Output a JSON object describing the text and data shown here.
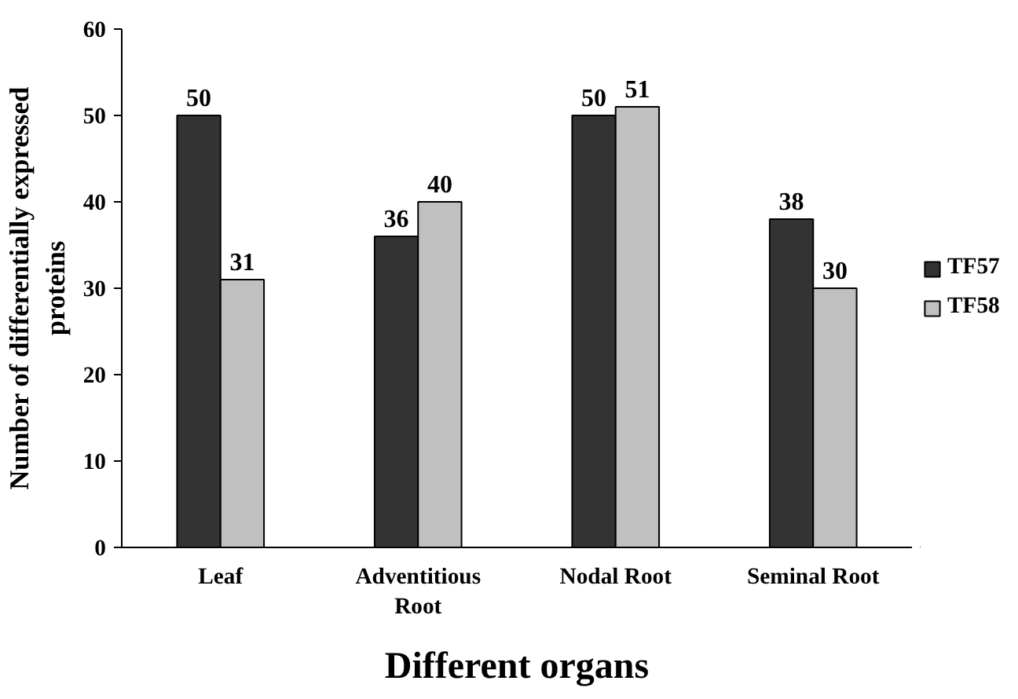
{
  "chart_data": {
    "type": "bar",
    "xlabel": "Different organs",
    "ylabel": "Number of differentially expressed proteins",
    "categories": [
      "Leaf",
      "Adventitious Root",
      "Nodal Root",
      "Seminal Root"
    ],
    "series": [
      {
        "name": "TF57",
        "color": "#333333",
        "values": [
          50,
          36,
          50,
          38
        ]
      },
      {
        "name": "TF58",
        "color": "#c0c0c0",
        "values": [
          31,
          40,
          51,
          30
        ]
      }
    ],
    "ylim": [
      0,
      60
    ],
    "yticks": [
      0,
      10,
      20,
      30,
      40,
      50,
      60
    ],
    "grid": false,
    "legend": "right",
    "data_labels": true
  }
}
